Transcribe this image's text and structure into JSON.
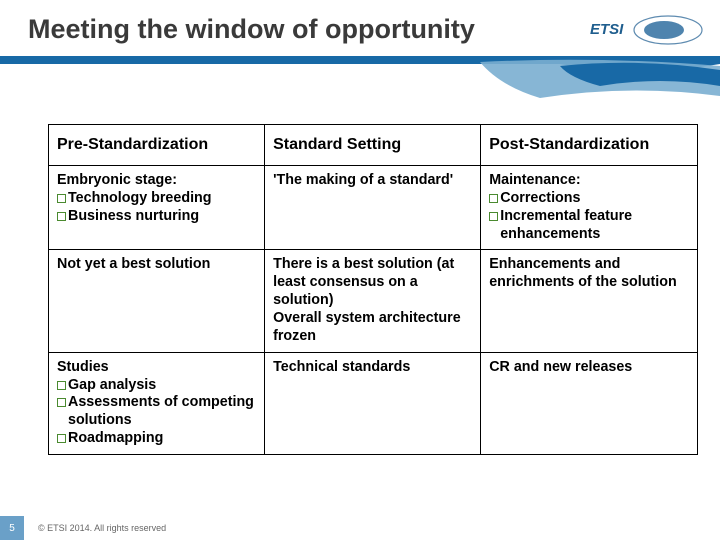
{
  "title": "Meeting the window of opportunity",
  "logo_text": "ETSI",
  "colors": {
    "title_color": "#3a3a3a",
    "decor_blue_dark": "#1869a6",
    "decor_blue_light": "#7aaed0",
    "bullet_border": "#4a8a2f",
    "pagenum_bg": "#6aa0c8",
    "table_border": "#000000"
  },
  "table": {
    "column_widths_pct": [
      33.3,
      33.3,
      33.4
    ],
    "header": [
      "Pre-Standardization",
      "Standard Setting",
      "Post-Standardization"
    ],
    "rows": [
      {
        "c0": {
          "lead": "Embryonic stage:",
          "bullets": [
            "Technology breeding",
            "Business nurturing"
          ]
        },
        "c1": {
          "text": "'The making of a standard'"
        },
        "c2": {
          "lead": "Maintenance:",
          "bullets": [
            "Corrections",
            "Incremental feature enhancements"
          ]
        }
      },
      {
        "c0": {
          "text": "Not yet a best solution"
        },
        "c1": {
          "text": "There is a best solution (at least consensus on a solution)\nOverall system architecture frozen"
        },
        "c2": {
          "text": "Enhancements and enrichments of the solution"
        }
      },
      {
        "c0": {
          "lead": "Studies",
          "bullets": [
            "Gap analysis",
            "Assessments of competing solutions",
            "Roadmapping"
          ]
        },
        "c1": {
          "text": "Technical standards"
        },
        "c2": {
          "text": "CR and new releases"
        }
      }
    ]
  },
  "footer": {
    "page": "5",
    "copyright": "© ETSI 2014. All rights reserved"
  }
}
